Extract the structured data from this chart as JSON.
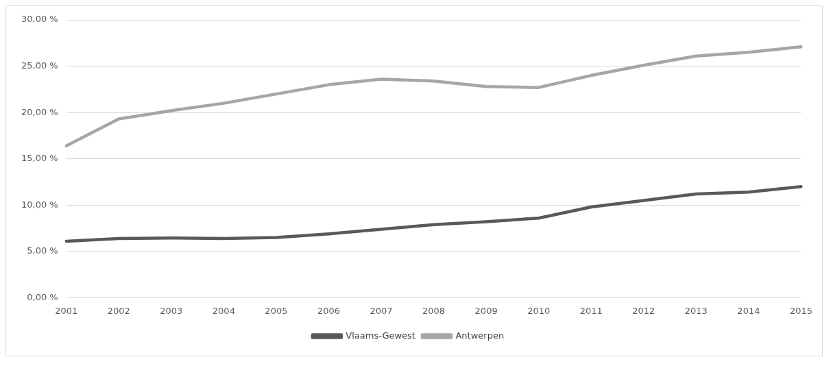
{
  "chart_data": {
    "type": "line",
    "categories": [
      "2001",
      "2002",
      "2003",
      "2004",
      "2005",
      "2006",
      "2007",
      "2008",
      "2009",
      "2010",
      "2011",
      "2012",
      "2013",
      "2014",
      "2015"
    ],
    "series": [
      {
        "name": "Vlaams-Gewest",
        "color": "#595959",
        "values": [
          6.1,
          6.4,
          6.45,
          6.4,
          6.5,
          6.9,
          7.4,
          7.9,
          8.2,
          8.6,
          9.8,
          10.5,
          11.2,
          11.4,
          12.0
        ]
      },
      {
        "name": "Antwerpen",
        "color": "#a6a6a6",
        "values": [
          16.4,
          19.3,
          20.2,
          21.0,
          22.0,
          23.0,
          23.6,
          23.4,
          22.8,
          22.7,
          24.0,
          25.1,
          26.1,
          26.5,
          27.1
        ]
      }
    ],
    "ylim": [
      0,
      30
    ],
    "yticks": [
      {
        "value": 0,
        "label": "0,00 %"
      },
      {
        "value": 5,
        "label": "5,00 %"
      },
      {
        "value": 10,
        "label": "10,00 %"
      },
      {
        "value": 15,
        "label": "15,00 %"
      },
      {
        "value": 20,
        "label": "20,00 %"
      },
      {
        "value": 25,
        "label": "25,00 %"
      },
      {
        "value": 30,
        "label": "30,00 %"
      }
    ],
    "grid": "y",
    "legend": "bottom",
    "marker": "none",
    "line_style": "solid"
  }
}
